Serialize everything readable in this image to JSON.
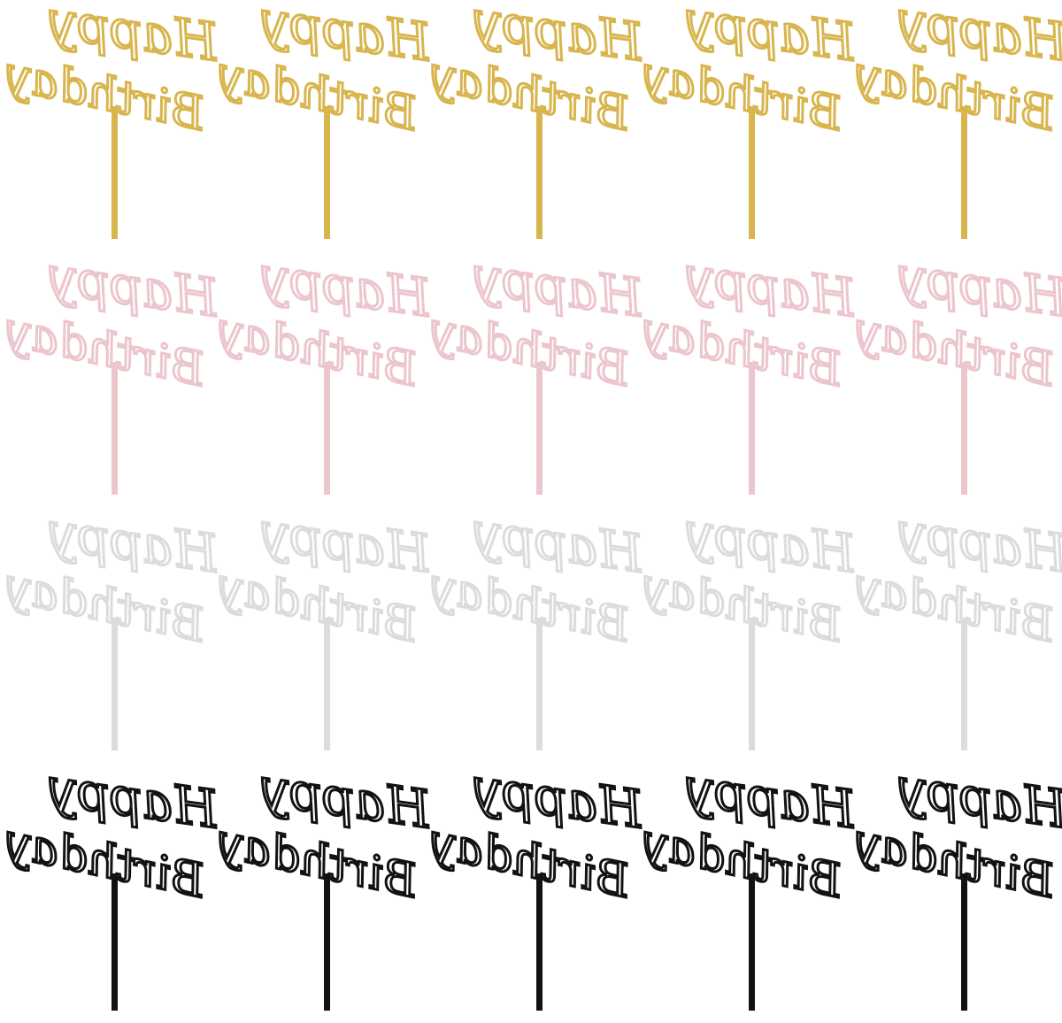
{
  "rows": [
    {
      "toppers": [
        {
          "line1": "Happy",
          "line2": "Birthday"
        },
        {
          "line1": "Happy",
          "line2": "Birthday"
        },
        {
          "line1": "Happy",
          "line2": "Birthday"
        },
        {
          "line1": "Happy",
          "line2": "Birthday"
        },
        {
          "line1": "Happy",
          "line2": "Birthday"
        }
      ]
    },
    {
      "toppers": [
        {
          "line1": "Happy",
          "line2": "Birthday"
        },
        {
          "line1": "Happy",
          "line2": "Birthday"
        },
        {
          "line1": "Happy",
          "line2": "Birthday"
        },
        {
          "line1": "Happy",
          "line2": "Birthday"
        },
        {
          "line1": "Happy",
          "line2": "Birthday"
        }
      ]
    },
    {
      "toppers": [
        {
          "line1": "Happy",
          "line2": "Birthday"
        },
        {
          "line1": "Happy",
          "line2": "Birthday"
        },
        {
          "line1": "Happy",
          "line2": "Birthday"
        },
        {
          "line1": "Happy",
          "line2": "Birthday"
        },
        {
          "line1": "Happy",
          "line2": "Birthday"
        }
      ]
    },
    {
      "toppers": [
        {
          "line1": "Happy",
          "line2": "Birthday"
        },
        {
          "line1": "Happy",
          "line2": "Birthday"
        },
        {
          "line1": "Happy",
          "line2": "Birthday"
        },
        {
          "line1": "Happy",
          "line2": "Birthday"
        },
        {
          "line1": "Happy",
          "line2": "Birthday"
        }
      ]
    }
  ]
}
